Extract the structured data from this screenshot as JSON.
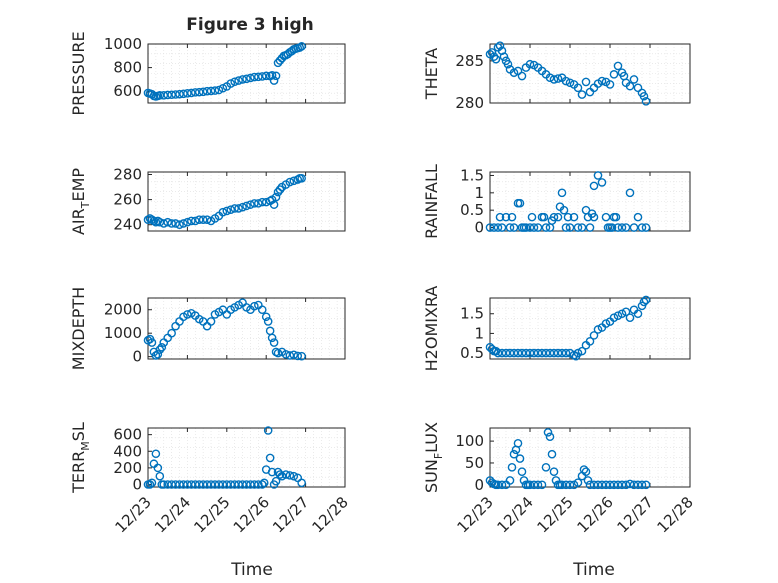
{
  "figure": {
    "title": "Figure 3 high",
    "x_label": "Time",
    "x_ticks": [
      "12/23",
      "12/24",
      "12/25",
      "12/26",
      "12/27",
      "12/28"
    ]
  },
  "colors": {
    "marker": "#0072BD",
    "axis": "#262626",
    "grid": "#dedede",
    "background": "#ffffff"
  },
  "chart_data": [
    {
      "type": "scatter",
      "ylabel": "PRESSURE",
      "xlim": [
        0,
        5
      ],
      "ylim": [
        500,
        1000
      ],
      "yticks": [
        600,
        800,
        1000
      ],
      "x_ticks": [],
      "title": "Figure 3 high",
      "x": [
        0.0,
        0.05,
        0.1,
        0.15,
        0.2,
        0.25,
        0.3,
        0.4,
        0.5,
        0.6,
        0.7,
        0.8,
        0.9,
        1.0,
        1.1,
        1.2,
        1.3,
        1.4,
        1.5,
        1.6,
        1.7,
        1.8,
        1.9,
        2.0,
        2.1,
        2.2,
        2.3,
        2.4,
        2.5,
        2.6,
        2.7,
        2.8,
        2.9,
        3.0,
        3.1,
        3.15,
        3.2,
        3.25,
        3.3,
        3.35,
        3.4,
        3.45,
        3.5,
        3.55,
        3.6,
        3.65,
        3.7,
        3.75,
        3.8,
        3.85,
        3.9
      ],
      "y": [
        585,
        580,
        575,
        560,
        555,
        560,
        565,
        565,
        568,
        570,
        572,
        575,
        578,
        582,
        585,
        590,
        592,
        595,
        600,
        602,
        605,
        610,
        625,
        640,
        665,
        680,
        690,
        700,
        705,
        712,
        720,
        722,
        725,
        730,
        728,
        735,
        690,
        730,
        840,
        860,
        880,
        900,
        905,
        915,
        930,
        940,
        955,
        960,
        965,
        970,
        980
      ]
    },
    {
      "type": "scatter",
      "ylabel": "THETA",
      "xlim": [
        0,
        5
      ],
      "ylim": [
        280,
        287
      ],
      "yticks": [
        280,
        285
      ],
      "x": [
        0.0,
        0.05,
        0.1,
        0.15,
        0.2,
        0.25,
        0.3,
        0.35,
        0.4,
        0.45,
        0.5,
        0.6,
        0.7,
        0.8,
        0.9,
        1.0,
        1.1,
        1.2,
        1.3,
        1.4,
        1.5,
        1.6,
        1.7,
        1.8,
        1.9,
        2.0,
        2.1,
        2.2,
        2.3,
        2.4,
        2.5,
        2.6,
        2.7,
        2.8,
        2.9,
        3.0,
        3.1,
        3.2,
        3.3,
        3.35,
        3.4,
        3.5,
        3.6,
        3.7,
        3.8,
        3.85,
        3.9
      ],
      "y": [
        285.8,
        286,
        285.5,
        285.2,
        286.6,
        286.8,
        286.2,
        285.5,
        285,
        284.6,
        284,
        283.6,
        283.8,
        283.2,
        284.2,
        284.6,
        284.5,
        284.2,
        283.8,
        283.4,
        283,
        282.8,
        282.9,
        283,
        282.6,
        282.4,
        282.2,
        281.8,
        281,
        282.5,
        281.3,
        281.8,
        282.3,
        282.6,
        282.5,
        282.2,
        283.4,
        284.4,
        283.6,
        283.2,
        282.4,
        282,
        282.8,
        281.8,
        281.2,
        280.8,
        280.2
      ]
    },
    {
      "type": "scatter",
      "ylabel": "AIR_TEMP",
      "xlim": [
        0,
        5
      ],
      "ylim": [
        235,
        282
      ],
      "yticks": [
        240,
        260,
        280
      ],
      "x": [
        0.0,
        0.05,
        0.1,
        0.15,
        0.2,
        0.25,
        0.3,
        0.4,
        0.5,
        0.6,
        0.7,
        0.8,
        0.9,
        1.0,
        1.1,
        1.2,
        1.3,
        1.4,
        1.5,
        1.6,
        1.7,
        1.8,
        1.9,
        2.0,
        2.1,
        2.2,
        2.3,
        2.4,
        2.5,
        2.6,
        2.7,
        2.8,
        2.9,
        3.0,
        3.1,
        3.15,
        3.2,
        3.25,
        3.3,
        3.35,
        3.4,
        3.5,
        3.6,
        3.7,
        3.8,
        3.85,
        3.9
      ],
      "y": [
        244,
        245,
        244,
        243,
        242,
        243,
        242,
        241,
        242,
        241,
        241,
        240,
        241,
        242,
        243,
        243,
        244,
        244,
        244,
        243,
        245,
        247,
        250,
        251,
        252,
        253,
        253,
        254,
        255,
        256,
        257,
        257,
        258,
        258,
        259,
        260,
        256,
        262,
        266,
        268,
        270,
        272,
        274,
        275,
        276,
        277,
        277
      ]
    },
    {
      "type": "scatter",
      "ylabel": "RAINFALL",
      "xlim": [
        0,
        5
      ],
      "ylim": [
        -0.1,
        1.6
      ],
      "yticks": [
        0,
        0.5,
        1,
        1.5
      ],
      "x": [
        0.0,
        0.1,
        0.2,
        0.3,
        0.4,
        0.5,
        0.55,
        0.6,
        0.7,
        0.75,
        0.8,
        0.85,
        0.9,
        1.0,
        1.05,
        1.1,
        1.2,
        1.3,
        1.35,
        1.4,
        1.5,
        1.6,
        1.7,
        1.75,
        1.8,
        1.85,
        1.9,
        2.0,
        2.1,
        2.2,
        2.3,
        2.4,
        2.45,
        2.5,
        2.6,
        2.7,
        2.8,
        2.9,
        2.95,
        3.0,
        3.05,
        3.1,
        3.15,
        3.2,
        3.3,
        3.4,
        3.5,
        3.6,
        3.7,
        3.8,
        3.9,
        0.25,
        1.55,
        1.95,
        2.55,
        2.6
      ],
      "y": [
        0,
        0,
        0,
        0,
        0.3,
        0,
        0.3,
        0,
        0.7,
        0.7,
        0,
        0,
        0,
        0,
        0.3,
        0,
        0,
        0.3,
        0.3,
        0,
        0,
        0.3,
        0.3,
        0.6,
        1.0,
        0.5,
        0,
        0,
        0.3,
        0,
        0,
        0.5,
        0.3,
        0,
        1.2,
        1.5,
        1.3,
        0.3,
        0,
        0,
        0,
        0.3,
        0.3,
        0,
        0,
        0,
        1.0,
        0,
        0.3,
        0,
        0,
        0.3,
        0.2,
        0.3,
        0.4,
        0.3
      ]
    },
    {
      "type": "scatter",
      "ylabel": "MIXDEPTH",
      "xlim": [
        0,
        5
      ],
      "ylim": [
        -100,
        2500
      ],
      "yticks": [
        0,
        1000,
        2000
      ],
      "x": [
        0.0,
        0.05,
        0.1,
        0.15,
        0.2,
        0.25,
        0.3,
        0.35,
        0.4,
        0.5,
        0.6,
        0.7,
        0.8,
        0.9,
        1.0,
        1.1,
        1.2,
        1.3,
        1.4,
        1.5,
        1.6,
        1.7,
        1.8,
        1.9,
        2.0,
        2.1,
        2.2,
        2.3,
        2.4,
        2.5,
        2.6,
        2.7,
        2.8,
        2.9,
        3.0,
        3.05,
        3.1,
        3.15,
        3.2,
        3.25,
        3.3,
        3.4,
        3.5,
        3.6,
        3.7,
        3.8,
        3.9
      ],
      "y": [
        700,
        750,
        600,
        200,
        50,
        100,
        300,
        400,
        600,
        800,
        1000,
        1300,
        1500,
        1700,
        1800,
        1850,
        1750,
        1600,
        1500,
        1300,
        1500,
        1800,
        1900,
        2000,
        1800,
        2000,
        2100,
        2200,
        2300,
        2100,
        2000,
        2150,
        2200,
        2000,
        1700,
        1500,
        1100,
        800,
        600,
        200,
        150,
        200,
        100,
        50,
        80,
        30,
        20
      ]
    },
    {
      "type": "scatter",
      "ylabel": "H2OMIXRA",
      "xlim": [
        0,
        5
      ],
      "ylim": [
        0.35,
        1.9
      ],
      "yticks": [
        0.5,
        1,
        1.5
      ],
      "x": [
        0.0,
        0.05,
        0.1,
        0.15,
        0.2,
        0.3,
        0.4,
        0.5,
        0.6,
        0.7,
        0.8,
        0.9,
        1.0,
        1.1,
        1.2,
        1.3,
        1.4,
        1.5,
        1.6,
        1.7,
        1.8,
        1.9,
        2.0,
        2.1,
        2.15,
        2.2,
        2.3,
        2.4,
        2.5,
        2.6,
        2.7,
        2.8,
        2.9,
        3.0,
        3.1,
        3.2,
        3.3,
        3.4,
        3.5,
        3.6,
        3.7,
        3.8,
        3.85,
        3.9
      ],
      "y": [
        0.65,
        0.6,
        0.55,
        0.55,
        0.5,
        0.5,
        0.5,
        0.5,
        0.5,
        0.5,
        0.5,
        0.5,
        0.5,
        0.5,
        0.5,
        0.5,
        0.5,
        0.5,
        0.5,
        0.5,
        0.5,
        0.5,
        0.5,
        0.45,
        0.42,
        0.5,
        0.55,
        0.7,
        0.8,
        0.95,
        1.1,
        1.15,
        1.25,
        1.3,
        1.4,
        1.45,
        1.5,
        1.55,
        1.4,
        1.6,
        1.5,
        1.7,
        1.8,
        1.85
      ]
    },
    {
      "type": "scatter",
      "ylabel": "TERR_MSL",
      "xlim": [
        0,
        5
      ],
      "ylim": [
        -30,
        680
      ],
      "yticks": [
        0,
        200,
        400,
        600
      ],
      "x_ticks": [
        "12/23",
        "12/24",
        "12/25",
        "12/26",
        "12/27",
        "12/28"
      ],
      "xlabel": "Time",
      "x": [
        0.0,
        0.05,
        0.1,
        0.15,
        0.2,
        0.25,
        0.3,
        0.35,
        0.4,
        0.5,
        0.6,
        0.7,
        0.8,
        0.9,
        1.0,
        1.1,
        1.2,
        1.3,
        1.4,
        1.5,
        1.6,
        1.7,
        1.8,
        1.9,
        2.0,
        2.1,
        2.2,
        2.3,
        2.4,
        2.5,
        2.6,
        2.7,
        2.8,
        2.9,
        2.95,
        3.0,
        3.05,
        3.1,
        3.15,
        3.2,
        3.25,
        3.3,
        3.35,
        3.4,
        3.5,
        3.6,
        3.7,
        3.8,
        3.9
      ],
      "y": [
        0,
        0,
        20,
        250,
        370,
        200,
        100,
        0,
        0,
        0,
        0,
        0,
        0,
        0,
        0,
        0,
        0,
        0,
        0,
        0,
        0,
        0,
        0,
        0,
        0,
        0,
        0,
        0,
        0,
        0,
        0,
        0,
        0,
        0,
        20,
        180,
        650,
        320,
        150,
        0,
        40,
        150,
        120,
        100,
        120,
        110,
        100,
        80,
        20
      ]
    },
    {
      "type": "scatter",
      "ylabel": "SUN_FLUX",
      "xlim": [
        0,
        5
      ],
      "ylim": [
        -5,
        130
      ],
      "yticks": [
        0,
        50,
        100
      ],
      "x_ticks": [
        "12/23",
        "12/24",
        "12/25",
        "12/26",
        "12/27",
        "12/28"
      ],
      "xlabel": "Time",
      "x": [
        0.0,
        0.05,
        0.1,
        0.15,
        0.2,
        0.3,
        0.4,
        0.5,
        0.55,
        0.6,
        0.65,
        0.7,
        0.75,
        0.8,
        0.85,
        0.9,
        0.95,
        1.0,
        1.1,
        1.2,
        1.3,
        1.4,
        1.45,
        1.5,
        1.55,
        1.6,
        1.65,
        1.7,
        1.75,
        1.8,
        1.9,
        2.0,
        2.1,
        2.2,
        2.3,
        2.35,
        2.4,
        2.45,
        2.5,
        2.6,
        2.7,
        2.8,
        2.9,
        3.0,
        3.1,
        3.2,
        3.3,
        3.4,
        3.5,
        3.6,
        3.7,
        3.8,
        3.9
      ],
      "y": [
        10,
        5,
        2,
        0,
        0,
        0,
        0,
        10,
        40,
        70,
        80,
        95,
        60,
        30,
        10,
        0,
        0,
        0,
        0,
        0,
        0,
        40,
        120,
        110,
        70,
        30,
        10,
        0,
        0,
        0,
        0,
        0,
        0,
        5,
        20,
        35,
        30,
        10,
        0,
        0,
        0,
        0,
        0,
        0,
        0,
        0,
        0,
        0,
        2,
        0,
        0,
        0,
        0
      ]
    }
  ]
}
